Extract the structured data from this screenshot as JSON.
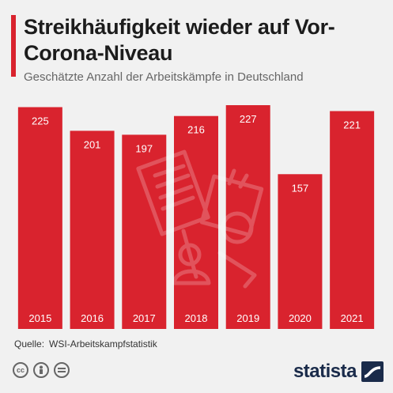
{
  "title": "Streikhäufigkeit wieder auf Vor-Corona-Niveau",
  "subtitle": "Geschätzte Anzahl der Arbeitskämpfe in Deutschland",
  "source_label": "Quelle:",
  "source_text": "WSI-Arbeitskampfstatistik",
  "brand": "statista",
  "colors": {
    "bar": "#d9232e",
    "background": "#f1f1f1",
    "label": "#ffffff"
  },
  "icons": [
    "cc-icon",
    "person-icon",
    "equal-icon",
    "statista-logo-icon",
    "strike-sign-watermark-icon"
  ],
  "chart_data": {
    "type": "bar",
    "categories": [
      "2015",
      "2016",
      "2017",
      "2018",
      "2019",
      "2020",
      "2021"
    ],
    "values": [
      225,
      201,
      197,
      216,
      227,
      157,
      221
    ],
    "title": "Streikhäufigkeit wieder auf Vor-Corona-Niveau",
    "subtitle": "Geschätzte Anzahl der Arbeitskämpfe in Deutschland",
    "xlabel": "",
    "ylabel": "",
    "ylim": [
      0,
      227
    ],
    "grid": false,
    "legend": "none"
  }
}
